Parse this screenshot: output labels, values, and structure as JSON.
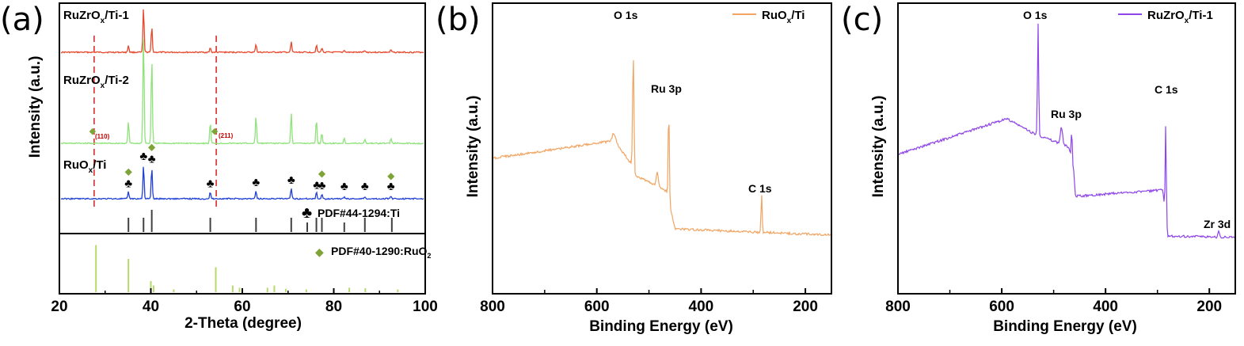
{
  "chart_data": [
    {
      "id": "a",
      "type": "line",
      "panel_label": "(a)",
      "xlabel": "2-Theta (degree)",
      "ylabel": "Intensity (a.u.)",
      "xlim": [
        20,
        100
      ],
      "xticks": [
        "20",
        "40",
        "60",
        "80",
        "100"
      ],
      "reference_lines": [
        27.6,
        54.3
      ],
      "plane_labels": [
        {
          "text": "(110)",
          "x": 27.6
        },
        {
          "text": "(211)",
          "x": 54.3
        }
      ],
      "series": [
        {
          "name": "RuZrOx/Ti-1",
          "label_main": "RuZrO",
          "label_sub": "x",
          "label_tail": "/Ti-1",
          "color": "#e8472a",
          "peaks": [
            [
              35.1,
              0.15
            ],
            [
              38.4,
              0.95
            ],
            [
              40.2,
              0.55
            ],
            [
              53.0,
              0.1
            ],
            [
              63.0,
              0.18
            ],
            [
              70.7,
              0.22
            ],
            [
              76.2,
              0.16
            ],
            [
              77.4,
              0.1
            ],
            [
              82.3,
              0.05
            ],
            [
              86.8,
              0.04
            ],
            [
              92.5,
              0.05
            ]
          ]
        },
        {
          "name": "RuZrOx/Ti-2",
          "label_main": "RuZrO",
          "label_sub": "x",
          "label_tail": "/Ti-2",
          "color": "#8ee37a",
          "peaks": [
            [
              35.1,
              0.2
            ],
            [
              38.4,
              1.0
            ],
            [
              40.2,
              0.8
            ],
            [
              53.0,
              0.2
            ],
            [
              63.0,
              0.25
            ],
            [
              70.7,
              0.28
            ],
            [
              76.2,
              0.22
            ],
            [
              77.4,
              0.1
            ],
            [
              82.3,
              0.05
            ],
            [
              86.8,
              0.04
            ],
            [
              92.5,
              0.05
            ]
          ]
        },
        {
          "name": "RuOx/Ti",
          "label_main": "RuO",
          "label_sub": "x",
          "label_tail": "/Ti",
          "color": "#1f3fd6",
          "peaks": [
            [
              35.1,
              0.12
            ],
            [
              38.4,
              0.6
            ],
            [
              40.2,
              0.55
            ],
            [
              53.0,
              0.12
            ],
            [
              63.0,
              0.14
            ],
            [
              70.7,
              0.18
            ],
            [
              76.2,
              0.12
            ],
            [
              77.4,
              0.08
            ],
            [
              82.3,
              0.04
            ],
            [
              86.8,
              0.03
            ],
            [
              92.5,
              0.04
            ]
          ]
        }
      ],
      "ti_markers": [
        35.1,
        38.4,
        40.2,
        53.0,
        63.0,
        70.7,
        76.3,
        77.4,
        82.3,
        86.8,
        92.5
      ],
      "ruo2_markers": [
        35.1,
        40.2,
        77.4,
        92.5
      ],
      "references": [
        {
          "symbol": "♣",
          "text": "PDF#44-1294:Ti",
          "color": "#404040",
          "sticks": [
            [
              35.1,
              0.45
            ],
            [
              38.4,
              0.45
            ],
            [
              40.2,
              0.7
            ],
            [
              53.0,
              0.45
            ],
            [
              63.0,
              0.45
            ],
            [
              70.7,
              0.45
            ],
            [
              74.2,
              0.3
            ],
            [
              76.2,
              0.45
            ],
            [
              77.4,
              0.45
            ],
            [
              82.3,
              0.3
            ],
            [
              86.8,
              0.45
            ],
            [
              92.7,
              0.45
            ]
          ]
        },
        {
          "symbol": "◆",
          "text_main": "PDF#40-1290:RuO",
          "text_sub": "2",
          "color": "#b6d96b",
          "sticks": [
            [
              28.0,
              0.85
            ],
            [
              35.1,
              0.6
            ],
            [
              40.0,
              0.2
            ],
            [
              40.6,
              0.12
            ],
            [
              45.0,
              0.05
            ],
            [
              54.2,
              0.45
            ],
            [
              57.9,
              0.12
            ],
            [
              59.4,
              0.08
            ],
            [
              65.5,
              0.08
            ],
            [
              67.0,
              0.12
            ],
            [
              69.5,
              0.06
            ],
            [
              74.0,
              0.05
            ],
            [
              83.4,
              0.08
            ],
            [
              86.9,
              0.07
            ],
            [
              94.0,
              0.05
            ]
          ]
        }
      ]
    },
    {
      "id": "b",
      "type": "line",
      "panel_label": "(b)",
      "xlabel": "Binding Energy (eV)",
      "ylabel": "Intensity (a.u.)",
      "xlim": [
        800,
        150
      ],
      "xticks": [
        "800",
        "600",
        "400",
        "200"
      ],
      "series": [
        {
          "name": "RuOx/Ti",
          "label_main": "RuO",
          "label_sub": "x",
          "label_tail": "/Ti",
          "color": "#f2a462"
        }
      ],
      "peak_labels": [
        {
          "text": "O 1s",
          "x": 530
        },
        {
          "text": "Ru 3p",
          "x": 462
        },
        {
          "text": "C 1s",
          "x": 284
        }
      ]
    },
    {
      "id": "c",
      "type": "line",
      "panel_label": "(c)",
      "xlabel": "Binding Energy (eV)",
      "ylabel": "Intensity (a.u.)",
      "xlim": [
        800,
        150
      ],
      "xticks": [
        "800",
        "600",
        "400",
        "200"
      ],
      "series": [
        {
          "name": "RuZrOx/Ti-1",
          "label_main": "RuZrO",
          "label_sub": "x",
          "label_tail": "/Ti-1",
          "color": "#8e44e8"
        }
      ],
      "peak_labels": [
        {
          "text": "O 1s",
          "x": 530
        },
        {
          "text": "Ru 3p",
          "x": 462
        },
        {
          "text": "C 1s",
          "x": 284
        },
        {
          "text": "Zr 3d",
          "x": 182
        }
      ]
    }
  ]
}
